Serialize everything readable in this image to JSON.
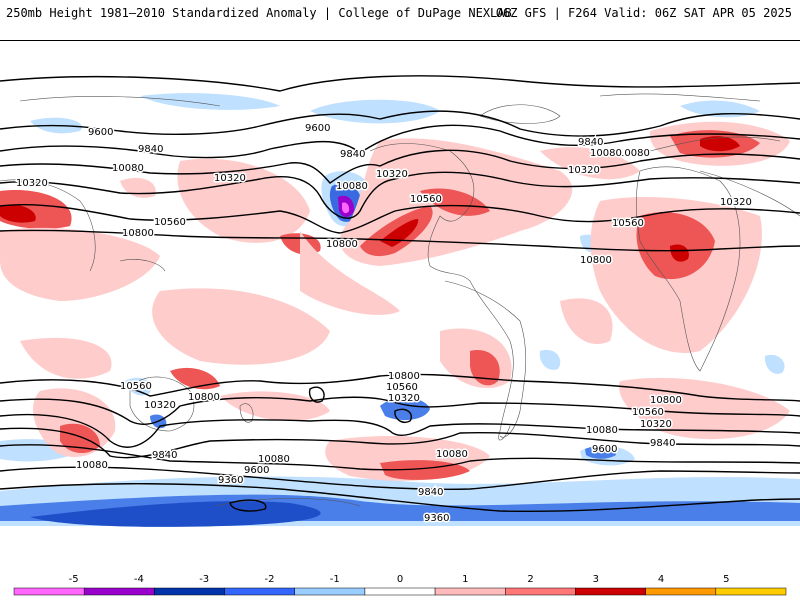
{
  "header": {
    "title_left": "250mb Height 1981–2010 Standardized Anomaly | College of DuPage NEXLAB",
    "title_right": "06Z GFS | F264 Valid: 06Z SAT APR 05 2025"
  },
  "contour_labels": [
    "9600",
    "9600",
    "9840",
    "9840",
    "10080",
    "10080",
    "10320",
    "10320",
    "10560",
    "10800",
    "10800",
    "10320",
    "10560",
    "10800",
    "10800",
    "9840",
    "10080",
    "10320",
    "10560",
    "10080",
    "10800",
    "10560",
    "10320",
    "10560",
    "10320",
    "10800",
    "10080",
    "9840",
    "10080",
    "9600",
    "9360",
    "9600",
    "9840",
    "10080",
    "9360"
  ],
  "colorbar": {
    "tick_labels": [
      "-5",
      "-4",
      "-3",
      "-2",
      "-1",
      "0",
      "1",
      "2",
      "3",
      "4",
      "5"
    ],
    "colors": [
      "#ff66ff",
      "#9900cc",
      "#0033aa",
      "#3366ff",
      "#99ccff",
      "#ffffff",
      "#ffbbbb",
      "#ff7777",
      "#cc0000",
      "#ff9900",
      "#ffcc00"
    ]
  }
}
